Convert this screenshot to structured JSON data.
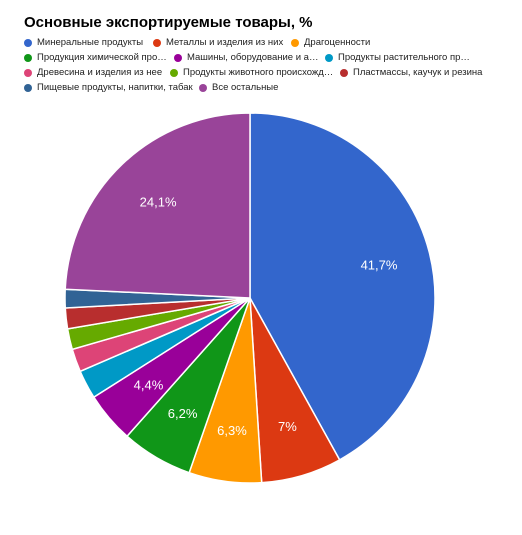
{
  "chart_data": {
    "type": "pie",
    "title": "Основные экспортируемые товары, %",
    "legend_position": "top",
    "slices": [
      {
        "name": "Минеральные продукты",
        "value": 41.7,
        "label": "41,7%",
        "color": "#3366cc"
      },
      {
        "name": "Металлы и изделия из них",
        "value": 7.0,
        "label": "7%",
        "color": "#dc3912"
      },
      {
        "name": "Драгоценности",
        "value": 6.3,
        "label": "6,3%",
        "color": "#ff9900"
      },
      {
        "name": "Продукция химической про…",
        "value": 6.2,
        "label": "6,2%",
        "color": "#109618"
      },
      {
        "name": "Машины, оборудование и а…",
        "value": 4.4,
        "label": "4,4%",
        "color": "#990099"
      },
      {
        "name": "Продукты растительного пр…",
        "value": 2.5,
        "label": "",
        "color": "#0099c6"
      },
      {
        "name": "Древесина и изделия из нее",
        "value": 2.0,
        "label": "",
        "color": "#dd4477"
      },
      {
        "name": "Продукты животного происхожд…",
        "value": 1.8,
        "label": "",
        "color": "#66aa00"
      },
      {
        "name": "Пластмассы, каучук и резина",
        "value": 1.8,
        "label": "",
        "color": "#b82e2e"
      },
      {
        "name": "Пищевые продукты, напитки, табак",
        "value": 1.6,
        "label": "",
        "color": "#316395"
      },
      {
        "name": "Все остальные",
        "value": 24.1,
        "label": "24,1%",
        "color": "#994499"
      }
    ]
  }
}
